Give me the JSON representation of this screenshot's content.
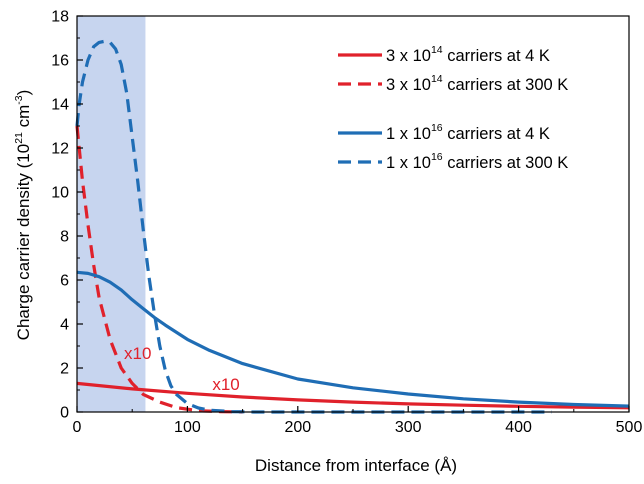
{
  "chart_data": {
    "type": "line",
    "xlabel": "Distance from interface (Å)",
    "ylabel_main": "Charge carrier density (10",
    "ylabel_sup1": "21",
    "ylabel_mid": " cm",
    "ylabel_sup2": "-3",
    "ylabel_end": ")",
    "xlim": [
      0,
      500
    ],
    "ylim": [
      0,
      18
    ],
    "x_ticks": [
      0,
      100,
      200,
      300,
      400,
      500
    ],
    "y_ticks": [
      0,
      2,
      4,
      6,
      8,
      10,
      12,
      14,
      16,
      18
    ],
    "shaded_region": {
      "x": [
        0,
        62
      ],
      "color": "#c7d5ef"
    },
    "legend_placement": "top-right",
    "annotations": [
      {
        "text": "x10",
        "x": 55,
        "y": 2.4
      },
      {
        "text": "x10",
        "x": 135,
        "y": 1.0
      }
    ],
    "series": [
      {
        "legend_pre": "3 x 10",
        "legend_sup": "14",
        "legend_post": " carriers at 4 K",
        "color": "#e0212b",
        "dash": "solid",
        "x": [
          0,
          50,
          100,
          150,
          200,
          250,
          300,
          350,
          400,
          450,
          500
        ],
        "y": [
          1.3,
          1.05,
          0.85,
          0.68,
          0.55,
          0.45,
          0.37,
          0.31,
          0.26,
          0.22,
          0.19
        ]
      },
      {
        "legend_pre": "3 x 10",
        "legend_sup": "14",
        "legend_post": " carriers at 300 K",
        "color": "#e0212b",
        "dash": "dashed",
        "x": [
          0,
          5,
          10,
          15,
          20,
          30,
          40,
          50,
          60,
          75,
          90,
          110,
          130,
          150
        ],
        "y": [
          13.0,
          10.5,
          8.5,
          6.7,
          5.2,
          3.3,
          2.0,
          1.3,
          0.8,
          0.45,
          0.2,
          0.06,
          0.02,
          0.0
        ]
      },
      {
        "legend_pre": "1 x 10",
        "legend_sup": "16",
        "legend_post": " carriers at 4 K",
        "color": "#1f6db5",
        "dash": "solid",
        "x": [
          0,
          10,
          20,
          30,
          40,
          50,
          60,
          70,
          80,
          100,
          120,
          150,
          200,
          250,
          300,
          350,
          400,
          450,
          500
        ],
        "y": [
          6.35,
          6.3,
          6.15,
          5.9,
          5.55,
          5.1,
          4.7,
          4.3,
          3.95,
          3.3,
          2.8,
          2.2,
          1.5,
          1.1,
          0.82,
          0.6,
          0.45,
          0.34,
          0.27
        ]
      },
      {
        "legend_pre": "1 x 10",
        "legend_sup": "16",
        "legend_post": " carriers at 300 K",
        "color": "#1f6db5",
        "dash": "dashed",
        "x": [
          0,
          2,
          5,
          10,
          15,
          20,
          25,
          30,
          35,
          40,
          45,
          50,
          55,
          60,
          65,
          70,
          75,
          80,
          85,
          90,
          100,
          110,
          120,
          140,
          160,
          200,
          300,
          430
        ],
        "y": [
          13.0,
          14.0,
          15.0,
          16.0,
          16.6,
          16.8,
          16.85,
          16.8,
          16.5,
          15.8,
          14.5,
          12.5,
          10.5,
          8.3,
          6.2,
          4.5,
          3.0,
          1.9,
          1.2,
          0.8,
          0.38,
          0.18,
          0.08,
          0.02,
          0.0,
          0.0,
          0.0,
          0.0
        ]
      }
    ]
  }
}
